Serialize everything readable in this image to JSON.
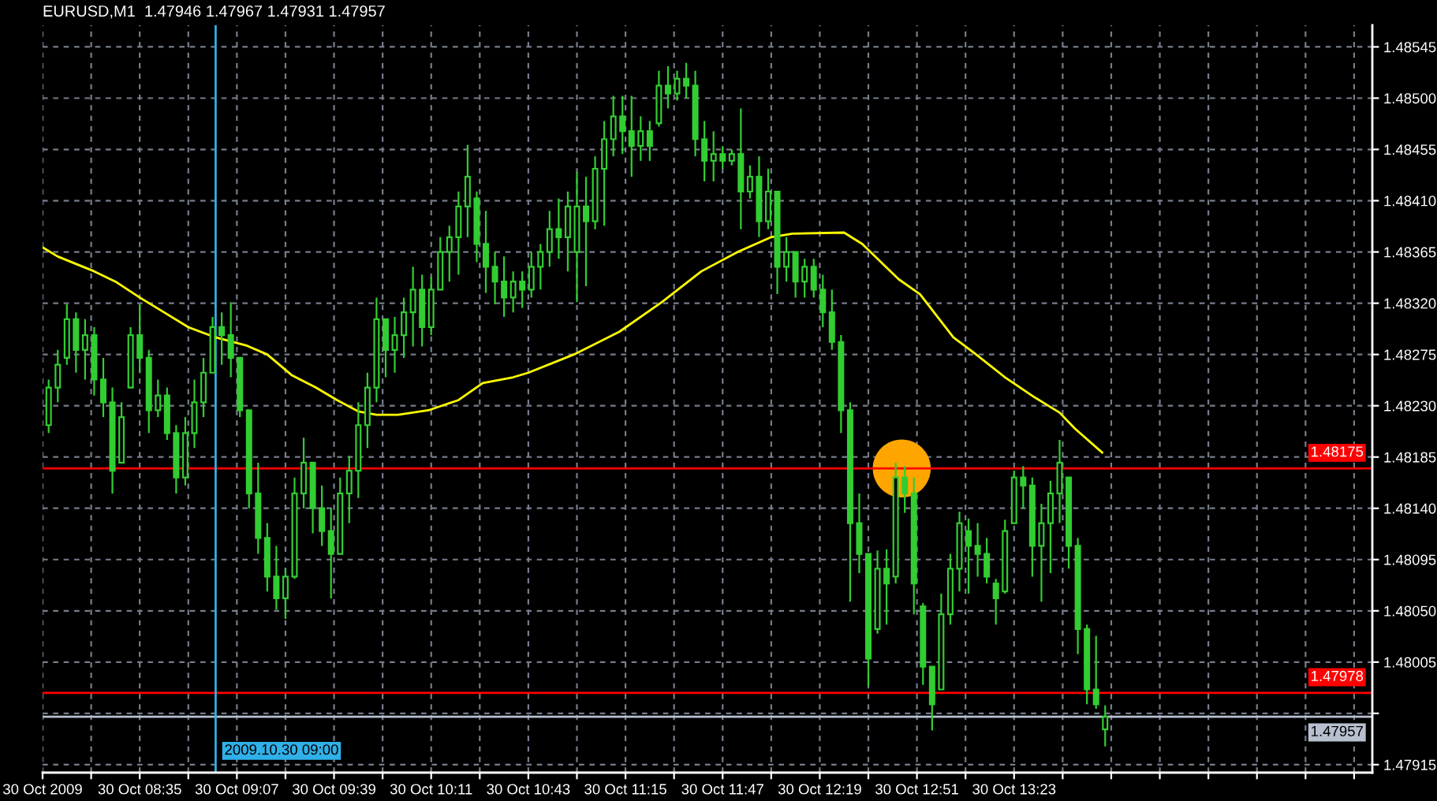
{
  "chart_data": {
    "type": "candlestick",
    "title": "EURUSD,M1  1.47946 1.47967 1.47931 1.47957",
    "color": "#32cd32",
    "x": [
      "2009-10-30T08:05",
      "2009-10-30T08:08",
      "2009-10-30T08:11",
      "2009-10-30T08:14",
      "2009-10-30T08:17",
      "2009-10-30T08:20",
      "2009-10-30T08:23",
      "2009-10-30T08:26",
      "2009-10-30T08:29",
      "2009-10-30T08:32",
      "2009-10-30T08:35",
      "2009-10-30T08:38",
      "2009-10-30T08:41",
      "2009-10-30T08:44",
      "2009-10-30T08:47",
      "2009-10-30T08:50",
      "2009-10-30T08:53",
      "2009-10-30T08:56",
      "2009-10-30T08:59",
      "2009-10-30T09:02",
      "2009-10-30T09:05",
      "2009-10-30T09:08",
      "2009-10-30T09:11",
      "2009-10-30T09:14",
      "2009-10-30T09:17",
      "2009-10-30T09:20",
      "2009-10-30T09:23",
      "2009-10-30T09:26",
      "2009-10-30T09:29",
      "2009-10-30T09:32",
      "2009-10-30T09:35",
      "2009-10-30T09:38",
      "2009-10-30T09:41",
      "2009-10-30T09:44",
      "2009-10-30T09:47",
      "2009-10-30T09:50",
      "2009-10-30T09:53",
      "2009-10-30T09:56",
      "2009-10-30T09:59",
      "2009-10-30T10:02",
      "2009-10-30T10:05",
      "2009-10-30T10:08",
      "2009-10-30T10:11",
      "2009-10-30T10:14",
      "2009-10-30T10:17",
      "2009-10-30T10:20",
      "2009-10-30T10:23",
      "2009-10-30T10:26",
      "2009-10-30T10:29",
      "2009-10-30T10:32",
      "2009-10-30T10:35",
      "2009-10-30T10:38",
      "2009-10-30T10:41",
      "2009-10-30T10:44",
      "2009-10-30T10:47",
      "2009-10-30T10:50",
      "2009-10-30T10:53",
      "2009-10-30T10:56",
      "2009-10-30T10:59",
      "2009-10-30T11:02",
      "2009-10-30T11:05",
      "2009-10-30T11:08",
      "2009-10-30T11:11",
      "2009-10-30T11:14",
      "2009-10-30T11:17",
      "2009-10-30T11:20",
      "2009-10-30T11:23",
      "2009-10-30T11:26",
      "2009-10-30T11:29",
      "2009-10-30T11:32",
      "2009-10-30T11:35",
      "2009-10-30T11:38",
      "2009-10-30T11:41",
      "2009-10-30T11:44",
      "2009-10-30T11:47",
      "2009-10-30T11:50",
      "2009-10-30T11:53",
      "2009-10-30T11:56",
      "2009-10-30T11:59",
      "2009-10-30T12:02",
      "2009-10-30T12:05",
      "2009-10-30T12:08",
      "2009-10-30T12:11",
      "2009-10-30T12:14",
      "2009-10-30T12:17",
      "2009-10-30T12:20",
      "2009-10-30T12:23",
      "2009-10-30T12:26",
      "2009-10-30T12:29",
      "2009-10-30T12:32",
      "2009-10-30T12:35",
      "2009-10-30T12:38",
      "2009-10-30T12:41",
      "2009-10-30T12:44",
      "2009-10-30T12:47",
      "2009-10-30T12:50",
      "2009-10-30T12:53",
      "2009-10-30T12:56",
      "2009-10-30T12:59",
      "2009-10-30T13:02",
      "2009-10-30T13:05",
      "2009-10-30T13:08",
      "2009-10-30T13:11",
      "2009-10-30T13:14",
      "2009-10-30T13:17",
      "2009-10-30T13:20",
      "2009-10-30T13:23",
      "2009-10-30T13:26",
      "2009-10-30T13:29",
      "2009-10-30T13:32",
      "2009-10-30T13:35",
      "2009-10-30T13:38",
      "2009-10-30T13:41",
      "2009-10-30T13:44",
      "2009-10-30T13:47",
      "2009-10-30T13:50",
      "2009-10-30T13:53"
    ],
    "ohlc": [
      [
        1.48213,
        1.48253,
        1.48206,
        1.48246
      ],
      [
        1.48246,
        1.48279,
        1.48233,
        1.48266
      ],
      [
        1.48272,
        1.48319,
        1.48266,
        1.48306
      ],
      [
        1.48306,
        1.48312,
        1.48259,
        1.48279
      ],
      [
        1.48279,
        1.48306,
        1.48253,
        1.48292
      ],
      [
        1.48292,
        1.48299,
        1.48239,
        1.48253
      ],
      [
        1.48253,
        1.48272,
        1.4822,
        1.48233
      ],
      [
        1.48233,
        1.48246,
        1.48153,
        1.48173
      ],
      [
        1.4818,
        1.48233,
        1.4818,
        1.4822
      ],
      [
        1.48246,
        1.48299,
        1.48246,
        1.48292
      ],
      [
        1.48292,
        1.48319,
        1.48259,
        1.48272
      ],
      [
        1.48272,
        1.48279,
        1.48206,
        1.48226
      ],
      [
        1.48226,
        1.48253,
        1.4822,
        1.48239
      ],
      [
        1.48239,
        1.48246,
        1.482,
        1.48206
      ],
      [
        1.48206,
        1.48213,
        1.48153,
        1.48167
      ],
      [
        1.48167,
        1.4822,
        1.4816,
        1.48206
      ],
      [
        1.48206,
        1.48253,
        1.48193,
        1.48233
      ],
      [
        1.48233,
        1.48272,
        1.4822,
        1.48259
      ],
      [
        1.48259,
        1.48308,
        1.48259,
        1.48299
      ],
      [
        1.48299,
        1.48312,
        1.48266,
        1.48292
      ],
      [
        1.48292,
        1.48321,
        1.48255,
        1.48272
      ],
      [
        1.48272,
        1.48272,
        1.4822,
        1.48226
      ],
      [
        1.48226,
        1.48226,
        1.4814,
        1.48153
      ],
      [
        1.48153,
        1.4818,
        1.481,
        1.48114
      ],
      [
        1.48114,
        1.48127,
        1.48067,
        1.4808
      ],
      [
        1.4808,
        1.48107,
        1.48051,
        1.48061
      ],
      [
        1.48061,
        1.48087,
        1.48043,
        1.4808
      ],
      [
        1.4808,
        1.48167,
        1.48078,
        1.48153
      ],
      [
        1.48153,
        1.48202,
        1.4814,
        1.4818
      ],
      [
        1.4818,
        1.4818,
        1.48118,
        1.4814
      ],
      [
        1.4814,
        1.4816,
        1.48107,
        1.4812
      ],
      [
        1.4812,
        1.4814,
        1.48061,
        1.481
      ],
      [
        1.481,
        1.48167,
        1.481,
        1.48153
      ],
      [
        1.48153,
        1.48186,
        1.48127,
        1.48173
      ],
      [
        1.48173,
        1.48233,
        1.48149,
        1.48213
      ],
      [
        1.48213,
        1.48259,
        1.48193,
        1.48246
      ],
      [
        1.48246,
        1.48325,
        1.48233,
        1.48306
      ],
      [
        1.48306,
        1.48306,
        1.48255,
        1.48279
      ],
      [
        1.48279,
        1.48308,
        1.48259,
        1.48292
      ],
      [
        1.48292,
        1.48325,
        1.48272,
        1.48312
      ],
      [
        1.48312,
        1.48352,
        1.48282,
        1.48332
      ],
      [
        1.48332,
        1.48345,
        1.48282,
        1.48299
      ],
      [
        1.48299,
        1.48343,
        1.48292,
        1.48332
      ],
      [
        1.48332,
        1.48378,
        1.48332,
        1.48365
      ],
      [
        1.48365,
        1.48388,
        1.48339,
        1.48378
      ],
      [
        1.48378,
        1.48418,
        1.48345,
        1.48405
      ],
      [
        1.48405,
        1.48459,
        1.48378,
        1.48431
      ],
      [
        1.48412,
        1.48418,
        1.48356,
        1.48372
      ],
      [
        1.48372,
        1.48401,
        1.48329,
        1.48352
      ],
      [
        1.48352,
        1.48365,
        1.48319,
        1.48339
      ],
      [
        1.48339,
        1.48361,
        1.48308,
        1.48325
      ],
      [
        1.48325,
        1.48348,
        1.48312,
        1.48339
      ],
      [
        1.48339,
        1.48348,
        1.48316,
        1.48332
      ],
      [
        1.48332,
        1.48365,
        1.48325,
        1.48352
      ],
      [
        1.48352,
        1.48372,
        1.48332,
        1.48365
      ],
      [
        1.48365,
        1.48401,
        1.48352,
        1.48385
      ],
      [
        1.48385,
        1.48412,
        1.48359,
        1.48378
      ],
      [
        1.48378,
        1.48418,
        1.48348,
        1.48405
      ],
      [
        1.48365,
        1.48435,
        1.48321,
        1.48405
      ],
      [
        1.48405,
        1.48431,
        1.48335,
        1.48392
      ],
      [
        1.48392,
        1.48449,
        1.48385,
        1.48438
      ],
      [
        1.48438,
        1.4848,
        1.48388,
        1.48464
      ],
      [
        1.48464,
        1.48502,
        1.48449,
        1.48484
      ],
      [
        1.48484,
        1.48502,
        1.48451,
        1.48471
      ],
      [
        1.48471,
        1.48502,
        1.48431,
        1.48458
      ],
      [
        1.48458,
        1.48484,
        1.48445,
        1.48471
      ],
      [
        1.48471,
        1.4848,
        1.48445,
        1.48458
      ],
      [
        1.48478,
        1.48524,
        1.48475,
        1.48511
      ],
      [
        1.48511,
        1.48528,
        1.48491,
        1.48504
      ],
      [
        1.48504,
        1.48524,
        1.48498,
        1.48517
      ],
      [
        1.48517,
        1.48531,
        1.485,
        1.48511
      ],
      [
        1.48511,
        1.48524,
        1.48449,
        1.48464
      ],
      [
        1.48464,
        1.4848,
        1.48427,
        1.48445
      ],
      [
        1.48445,
        1.48471,
        1.48427,
        1.48451
      ],
      [
        1.48451,
        1.48458,
        1.48438,
        1.48445
      ],
      [
        1.48445,
        1.48455,
        1.48441,
        1.48451
      ],
      [
        1.48451,
        1.48491,
        1.48385,
        1.48418
      ],
      [
        1.48418,
        1.48441,
        1.48412,
        1.48431
      ],
      [
        1.48431,
        1.48449,
        1.48378,
        1.48392
      ],
      [
        1.48392,
        1.48438,
        1.48385,
        1.48418
      ],
      [
        1.48418,
        1.48418,
        1.48328,
        1.48352
      ],
      [
        1.48352,
        1.48378,
        1.48339,
        1.48365
      ],
      [
        1.48365,
        1.48365,
        1.48325,
        1.48339
      ],
      [
        1.48339,
        1.48359,
        1.48325,
        1.48352
      ],
      [
        1.48352,
        1.48359,
        1.48325,
        1.48332
      ],
      [
        1.48332,
        1.48345,
        1.48299,
        1.48312
      ],
      [
        1.48312,
        1.48332,
        1.48279,
        1.48286
      ],
      [
        1.48286,
        1.48292,
        1.48206,
        1.48226
      ],
      [
        1.48226,
        1.48233,
        1.48058,
        1.48127
      ],
      [
        1.48127,
        1.48153,
        1.48083,
        1.481
      ],
      [
        1.481,
        1.481,
        1.47984,
        1.48008
      ],
      [
        1.48034,
        1.48103,
        1.4803,
        1.48087
      ],
      [
        1.48087,
        1.48104,
        1.48038,
        1.48074
      ],
      [
        1.4808,
        1.4818,
        1.48074,
        1.48167
      ],
      [
        1.48167,
        1.48177,
        1.48136,
        1.48153
      ],
      [
        1.48153,
        1.48167,
        1.48047,
        1.48074
      ],
      [
        1.48054,
        1.48057,
        1.47985,
        1.48001
      ],
      [
        1.48001,
        1.48001,
        1.47945,
        1.47968
      ],
      [
        1.47981,
        1.48065,
        1.47981,
        1.48047
      ],
      [
        1.48047,
        1.481,
        1.48038,
        1.48087
      ],
      [
        1.48087,
        1.48137,
        1.48067,
        1.48127
      ],
      [
        1.4812,
        1.48131,
        1.48065,
        1.48107
      ],
      [
        1.48107,
        1.48127,
        1.4808,
        1.481
      ],
      [
        1.481,
        1.48114,
        1.48074,
        1.4808
      ],
      [
        1.48074,
        1.48078,
        1.48038,
        1.48061
      ],
      [
        1.48067,
        1.4813,
        1.48065,
        1.4812
      ],
      [
        1.48127,
        1.48173,
        1.48127,
        1.48167
      ],
      [
        1.48167,
        1.48177,
        1.4814,
        1.4816
      ],
      [
        1.4816,
        1.48167,
        1.4808,
        1.48107
      ],
      [
        1.48107,
        1.48144,
        1.48058,
        1.48127
      ],
      [
        1.48127,
        1.48164,
        1.48083,
        1.48153
      ],
      [
        1.48153,
        1.482,
        1.48127,
        1.4818
      ],
      [
        1.48167,
        1.48167,
        1.48087,
        1.48107
      ],
      [
        1.48107,
        1.48114,
        1.48012,
        1.48034
      ],
      [
        1.48034,
        1.48038,
        1.47968,
        1.47981
      ],
      [
        1.47981,
        1.48028,
        1.47964,
        1.47968
      ],
      [
        1.47946,
        1.47967,
        1.47931,
        1.47957
      ]
    ],
    "series": [
      {
        "type": "line",
        "color": "#ffff00",
        "x": [
          "2009-10-30T08:03",
          "2009-10-30T08:08",
          "2009-10-30T08:20",
          "2009-10-30T08:27",
          "2009-10-30T08:35",
          "2009-10-30T08:43",
          "2009-10-30T08:51",
          "2009-10-30T09:00",
          "2009-10-30T09:10",
          "2009-10-30T09:17",
          "2009-10-30T09:25",
          "2009-10-30T09:33",
          "2009-10-30T09:40",
          "2009-10-30T09:47",
          "2009-10-30T09:53",
          "2009-10-30T10:00",
          "2009-10-30T10:10",
          "2009-10-30T10:20",
          "2009-10-30T10:28",
          "2009-10-30T10:38",
          "2009-10-30T10:43",
          "2009-10-30T10:58",
          "2009-10-30T11:13",
          "2009-10-30T11:27",
          "2009-10-30T11:40",
          "2009-10-30T11:52",
          "2009-10-30T12:03",
          "2009-10-30T12:10",
          "2009-10-30T12:27",
          "2009-10-30T12:33",
          "2009-10-30T12:45",
          "2009-10-30T12:52",
          "2009-10-30T13:03",
          "2009-10-30T13:10",
          "2009-10-30T13:20",
          "2009-10-30T13:30",
          "2009-10-30T13:38",
          "2009-10-30T13:43",
          "2009-10-30T13:52"
        ],
        "values": [
          1.48369,
          1.48361,
          1.48348,
          1.48339,
          1.48325,
          1.48312,
          1.48299,
          1.4829,
          1.48283,
          1.48275,
          1.48257,
          1.48246,
          1.48235,
          1.48225,
          1.48222,
          1.48222,
          1.48226,
          1.48235,
          1.4825,
          1.48255,
          1.48259,
          1.48275,
          1.48295,
          1.48321,
          1.48348,
          1.48365,
          1.48378,
          1.48381,
          1.48382,
          1.48372,
          1.48341,
          1.48328,
          1.4829,
          1.48276,
          1.48255,
          1.48237,
          1.48224,
          1.4821,
          1.48189
        ]
      },
      {
        "type": "scatter",
        "color": "#ffa500",
        "marker": "circle",
        "x": [
          "2009-10-30T12:46"
        ],
        "values": [
          1.48175
        ]
      }
    ],
    "xlim": [
      "2009-10-30T08:03",
      "2009-10-30T15:21"
    ],
    "ylim": [
      1.47908,
      1.48564
    ],
    "xticks": [
      {
        "value": "2009-10-30T08:03",
        "label": "30 Oct 2009"
      },
      {
        "value": "2009-10-30T08:19",
        "label": null
      },
      {
        "value": "2009-10-30T08:35",
        "label": "30 Oct 08:35"
      },
      {
        "value": "2009-10-30T08:51",
        "label": null
      },
      {
        "value": "2009-10-30T09:07",
        "label": "30 Oct 09:07"
      },
      {
        "value": "2009-10-30T09:23",
        "label": null
      },
      {
        "value": "2009-10-30T09:39",
        "label": "30 Oct 09:39"
      },
      {
        "value": "2009-10-30T09:55",
        "label": null
      },
      {
        "value": "2009-10-30T10:11",
        "label": "30 Oct 10:11"
      },
      {
        "value": "2009-10-30T10:27",
        "label": null
      },
      {
        "value": "2009-10-30T10:43",
        "label": "30 Oct 10:43"
      },
      {
        "value": "2009-10-30T10:59",
        "label": null
      },
      {
        "value": "2009-10-30T11:15",
        "label": "30 Oct 11:15"
      },
      {
        "value": "2009-10-30T11:31",
        "label": null
      },
      {
        "value": "2009-10-30T11:47",
        "label": "30 Oct 11:47"
      },
      {
        "value": "2009-10-30T12:03",
        "label": null
      },
      {
        "value": "2009-10-30T12:19",
        "label": "30 Oct 12:19"
      },
      {
        "value": "2009-10-30T12:35",
        "label": null
      },
      {
        "value": "2009-10-30T12:51",
        "label": "30 Oct 12:51"
      },
      {
        "value": "2009-10-30T13:07",
        "label": null
      },
      {
        "value": "2009-10-30T13:23",
        "label": "30 Oct 13:23"
      },
      {
        "value": "2009-10-30T13:39",
        "label": null
      },
      {
        "value": "2009-10-30T13:55",
        "label": null
      },
      {
        "value": "2009-10-30T14:11",
        "label": null
      },
      {
        "value": "2009-10-30T14:27",
        "label": null
      },
      {
        "value": "2009-10-30T14:43",
        "label": null
      },
      {
        "value": "2009-10-30T14:59",
        "label": null
      },
      {
        "value": "2009-10-30T15:15",
        "label": null
      }
    ],
    "yticks": [
      1.47915,
      {
        "value": 1.4796,
        "label": null
      },
      1.48005,
      {
        "value": 1.4805,
        "label": "1.48050"
      },
      1.48095,
      {
        "value": 1.4814,
        "label": "1.48140"
      },
      1.48185,
      {
        "value": 1.4823,
        "label": "1.48230"
      },
      1.48275,
      {
        "value": 1.4832,
        "label": "1.48320"
      },
      1.48365,
      {
        "value": 1.4841,
        "label": "1.48410"
      },
      1.48455,
      {
        "value": 1.485,
        "label": "1.48500"
      },
      1.48545
    ],
    "ref_lines": [
      {
        "axis": "y",
        "value": 1.48175,
        "label": "1.48175",
        "color": "#ff0000"
      },
      {
        "axis": "y",
        "value": 1.47978,
        "label": "1.47978",
        "color": "#ff0000"
      },
      {
        "axis": "y",
        "value": 1.47957,
        "label": "1.47957",
        "color": "#b8c0d0"
      },
      {
        "axis": "x",
        "value": "2009-10-30T09:00",
        "label": "2009.10.30 09:00",
        "color": "#30b0e8"
      }
    ],
    "grid": true
  }
}
